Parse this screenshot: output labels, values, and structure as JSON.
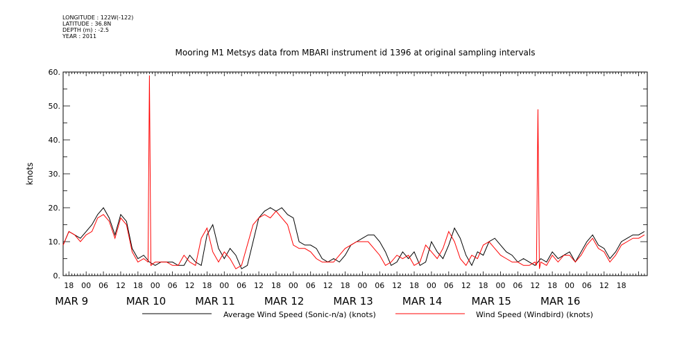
{
  "header": {
    "longitude": "LONGITUDE : 122W(-122)",
    "latitude": "LATITUDE : 36.8N",
    "depth": "DEPTH (m) : -2.5",
    "year": "YEAR : 2011"
  },
  "chart_data": {
    "type": "line",
    "title": "Mooring M1 Metsys data from MBARI instrument id 1396 at original sampling intervals",
    "ylabel": "knots",
    "xlabel": "",
    "ylim": [
      0,
      60
    ],
    "y_ticks": [
      0,
      10,
      20,
      30,
      40,
      50,
      60
    ],
    "y_tick_labels": [
      "0.",
      "10.",
      "20.",
      "30.",
      "40.",
      "50.",
      "60."
    ],
    "x_range_hours": [
      -8,
      116
    ],
    "x_unit_note": "hours after 2011-03-09 00:00",
    "x_hour_ticks": [
      -6,
      0,
      6,
      12,
      18,
      24,
      30,
      36,
      42,
      48,
      54,
      60,
      66,
      72,
      78,
      84,
      90,
      96,
      102,
      108,
      114,
      120,
      126,
      132,
      138,
      144,
      150,
      156,
      162,
      168,
      174,
      180,
      186
    ],
    "x_hour_labels": [
      "18",
      "00",
      "06",
      "12",
      "18",
      "00",
      "06",
      "12",
      "18",
      "00",
      "06",
      "12",
      "18",
      "00",
      "06",
      "12",
      "18",
      "00",
      "06",
      "12",
      "18",
      "00",
      "06",
      "12",
      "18",
      "00",
      "06",
      "12",
      "18",
      "00",
      "06",
      "12",
      "18"
    ],
    "day_labels": [
      "MAR  9",
      "MAR 10",
      "MAR 11",
      "MAR 12",
      "MAR 13",
      "MAR 14",
      "MAR 15",
      "MAR 16"
    ],
    "day_label_x": [
      "MAR 9 → 2011-03-09",
      "MAR 10 → 2011-03-10",
      "MAR 11 → 2011-03-11",
      "MAR 12 → 2011-03-12",
      "MAR 13 → 2011-03-13",
      "MAR 14 → 2011-03-14",
      "MAR 15 → 2011-03-15",
      "MAR 16 → 2011-03-16"
    ],
    "grid": false,
    "legend": "bottom",
    "series": [
      {
        "name": "Average Wind Speed (Sonic-n/a) (knots)",
        "color": "#000000",
        "x": [
          -8,
          -6,
          -4,
          -2,
          0,
          2,
          4,
          6,
          8,
          10,
          12,
          14,
          16,
          18,
          20,
          22,
          24,
          26,
          28,
          30,
          32,
          34,
          36,
          38,
          40,
          42,
          44,
          46,
          48,
          50,
          52,
          54,
          56,
          58,
          60,
          62,
          64,
          66,
          68,
          70,
          72,
          74,
          76,
          78,
          80,
          82,
          84,
          86,
          88,
          90,
          92,
          94,
          96,
          98,
          100,
          102,
          104,
          106,
          108,
          110,
          112,
          114,
          116,
          118,
          120,
          122,
          124,
          126,
          128,
          130,
          132,
          134,
          136,
          138,
          140,
          142,
          144,
          146,
          148,
          150,
          152,
          154,
          156,
          158,
          160,
          162,
          164,
          166,
          168,
          170,
          172,
          174,
          176,
          178,
          180,
          182,
          184,
          186,
          188,
          190,
          192,
          194
        ],
        "y": [
          9,
          13,
          12,
          11,
          13,
          15,
          18,
          20,
          17,
          12,
          18,
          16,
          8,
          5,
          6,
          4,
          3,
          4,
          4,
          4,
          3,
          3,
          6,
          4,
          3,
          12,
          15,
          8,
          5,
          8,
          6,
          2,
          3,
          10,
          17,
          19,
          20,
          19,
          20,
          18,
          17,
          10,
          9,
          9,
          8,
          5,
          4,
          5,
          4,
          6,
          9,
          10,
          11,
          12,
          12,
          10,
          7,
          3,
          4,
          7,
          5,
          7,
          3,
          4,
          10,
          7,
          5,
          9,
          14,
          11,
          6,
          3,
          7,
          6,
          10,
          11,
          9,
          7,
          6,
          4,
          5,
          4,
          3,
          5,
          4,
          7,
          5,
          6,
          7,
          4,
          7,
          10,
          12,
          9,
          8,
          5,
          7,
          10,
          11,
          12,
          12,
          13
        ]
      },
      {
        "name": "Wind Speed (Windbird) (knots)",
        "color": "#ff0000",
        "x": [
          -8,
          -6,
          -4,
          -2,
          0,
          2,
          4,
          6,
          8,
          10,
          12,
          14,
          16,
          18,
          20,
          21.5,
          22,
          22.5,
          24,
          26,
          28,
          30,
          32,
          34,
          36,
          38,
          40,
          42,
          44,
          46,
          48,
          50,
          52,
          54,
          56,
          58,
          60,
          62,
          64,
          66,
          68,
          70,
          72,
          74,
          76,
          78,
          80,
          82,
          84,
          86,
          88,
          90,
          92,
          94,
          96,
          98,
          100,
          102,
          104,
          106,
          108,
          110,
          112,
          114,
          116,
          118,
          120,
          122,
          124,
          126,
          128,
          130,
          132,
          134,
          136,
          138,
          140,
          142,
          144,
          146,
          148,
          150,
          152,
          154,
          156,
          156.5,
          157,
          157.5,
          158,
          160,
          162,
          164,
          166,
          168,
          170,
          172,
          174,
          176,
          178,
          180,
          182,
          184,
          186,
          188,
          190,
          192,
          194
        ],
        "y": [
          9,
          13,
          12,
          10,
          12,
          13,
          17,
          18,
          16,
          11,
          17,
          15,
          7,
          4,
          5,
          4,
          59,
          3,
          4,
          4,
          4,
          3,
          3,
          6,
          4,
          3,
          11,
          14,
          7,
          4,
          7,
          5,
          2,
          3,
          9,
          15,
          17,
          18,
          17,
          19,
          17,
          15,
          9,
          8,
          8,
          7,
          5,
          4,
          4,
          4,
          6,
          8,
          9,
          10,
          10,
          10,
          8,
          6,
          3,
          4,
          6,
          5,
          6,
          3,
          4,
          9,
          7,
          5,
          8,
          13,
          10,
          5,
          3,
          6,
          5,
          9,
          10,
          8,
          6,
          5,
          4,
          4,
          3,
          3,
          4,
          3,
          49,
          2,
          4,
          3,
          6,
          4,
          6,
          6,
          4,
          6,
          9,
          11,
          8,
          7,
          4,
          6,
          9,
          10,
          11,
          11,
          12
        ]
      }
    ]
  }
}
